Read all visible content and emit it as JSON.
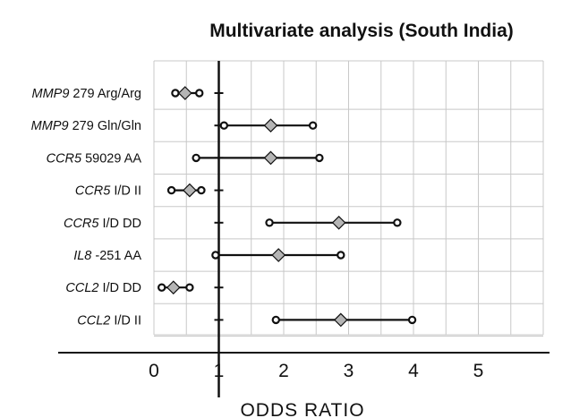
{
  "chart_data": {
    "type": "forest",
    "title": "Multivariate analysis (South India)",
    "xlabel": "ODDS RATIO",
    "xlim": [
      0,
      6
    ],
    "reference_line": 1,
    "xticks": [
      0,
      1,
      2,
      3,
      4,
      5
    ],
    "grid": true,
    "rows": [
      {
        "gene": "MMP9",
        "variant": "279 Arg/Arg",
        "or": 0.48,
        "lower": 0.33,
        "upper": 0.7
      },
      {
        "gene": "MMP9",
        "variant": "279 Gln/Gln",
        "or": 1.8,
        "lower": 1.08,
        "upper": 2.45
      },
      {
        "gene": "CCR5",
        "variant": "59029 AA",
        "or": 1.8,
        "lower": 0.65,
        "upper": 2.55
      },
      {
        "gene": "CCR5",
        "variant": "I/D II",
        "or": 0.55,
        "lower": 0.27,
        "upper": 0.73
      },
      {
        "gene": "CCR5",
        "variant": "I/D DD",
        "or": 2.85,
        "lower": 1.78,
        "upper": 3.75
      },
      {
        "gene": "IL8",
        "variant": "-251 AA",
        "or": 1.92,
        "lower": 0.95,
        "upper": 2.88
      },
      {
        "gene": "CCL2",
        "variant": "I/D DD",
        "or": 0.3,
        "lower": 0.12,
        "upper": 0.55
      },
      {
        "gene": "CCL2",
        "variant": "I/D II",
        "or": 2.88,
        "lower": 1.88,
        "upper": 3.98
      }
    ]
  }
}
